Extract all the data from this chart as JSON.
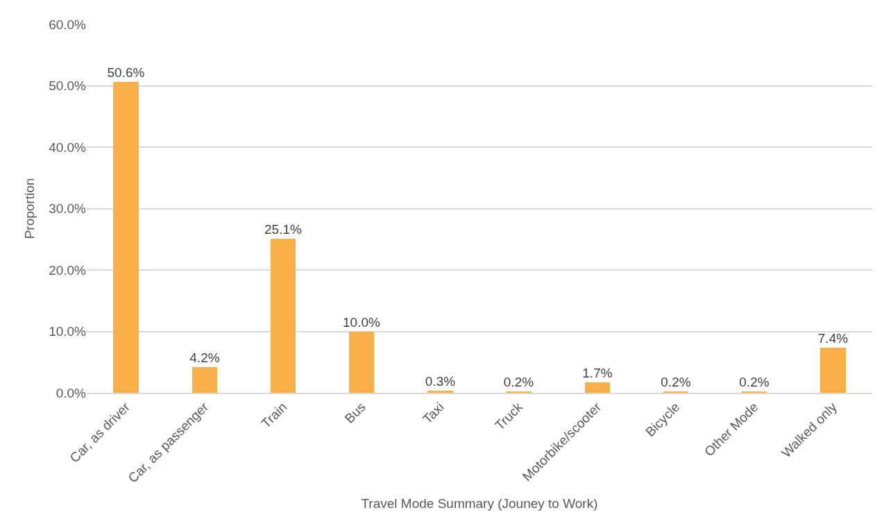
{
  "chart_data": {
    "type": "bar",
    "xlabel": "Travel Mode Summary (Jouney to Work)",
    "ylabel": "Proportion",
    "categories": [
      "Car, as driver",
      "Car, as passenger",
      "Train",
      "Bus",
      "Taxi",
      "Truck",
      "Motorbike/scooter",
      "Bicycle",
      "Other Mode",
      "Walked only"
    ],
    "values": [
      50.6,
      4.2,
      25.1,
      10.0,
      0.3,
      0.2,
      1.7,
      0.2,
      0.2,
      7.4
    ],
    "value_labels": [
      "50.6%",
      "4.2%",
      "25.1%",
      "10.0%",
      "0.3%",
      "0.2%",
      "1.7%",
      "0.2%",
      "0.2%",
      "7.4%"
    ],
    "color": "#f9b04a",
    "ylim": [
      0,
      60
    ],
    "yticks": [
      {
        "value": 0,
        "label": "0.0%"
      },
      {
        "value": 10,
        "label": "10.0%"
      },
      {
        "value": 20,
        "label": "20.0%"
      },
      {
        "value": 30,
        "label": "30.0%"
      },
      {
        "value": 40,
        "label": "40.0%"
      },
      {
        "value": 50,
        "label": "50.0%"
      },
      {
        "value": 60,
        "label": "60.0%"
      }
    ],
    "grid": "y"
  }
}
